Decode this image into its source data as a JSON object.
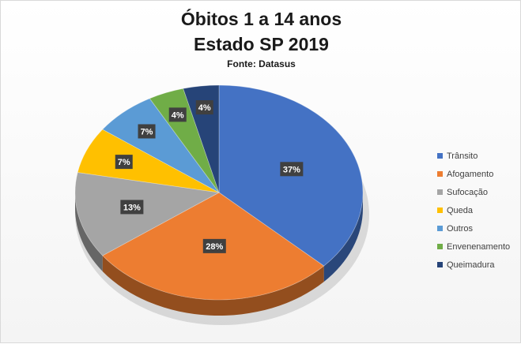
{
  "chart_data": {
    "type": "pie",
    "title": "Óbitos 1 a 14 anos",
    "subtitle": "Estado SP 2019",
    "source": "Fonte: Datasus",
    "categories": [
      "Trânsito",
      "Afogamento",
      "Sufocação",
      "Queda",
      "Outros",
      "Envenenamento",
      "Queimadura"
    ],
    "values": [
      37,
      28,
      13,
      7,
      7,
      4,
      4
    ],
    "labels": [
      "37%",
      "28%",
      "13%",
      "7%",
      "7%",
      "4%",
      "4%"
    ],
    "colors": [
      "#4472c4",
      "#ed7d31",
      "#a5a5a5",
      "#ffc000",
      "#5b9bd5",
      "#70ad47",
      "#264478"
    ],
    "legend_position": "right",
    "style": "3d-pie"
  }
}
